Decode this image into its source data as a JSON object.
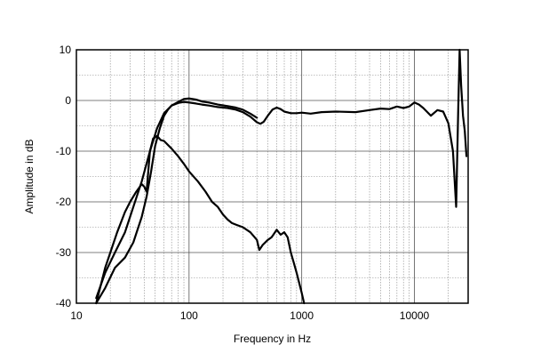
{
  "chart_data": {
    "type": "line",
    "title": "",
    "xlabel": "Frequency in Hz",
    "ylabel": "Amplitude in dB",
    "xscale": "log",
    "xlim": [
      10,
      30000
    ],
    "ylim": [
      -40,
      10
    ],
    "xticks": [
      10,
      100,
      1000,
      10000
    ],
    "xtick_labels": [
      "10",
      "100",
      "1000",
      "10000"
    ],
    "yticks": [
      10,
      0,
      -10,
      -20,
      -30,
      -40
    ],
    "ytick_labels": [
      "10",
      "0",
      "-10",
      "-20",
      "-30",
      "-40"
    ],
    "grid": true,
    "legend": "none",
    "line_color": "#000000",
    "series": [
      {
        "x": [
          15,
          18,
          22,
          27,
          32,
          38,
          45,
          52,
          60,
          70,
          80,
          90,
          100,
          115,
          130,
          150,
          180,
          220,
          260,
          300,
          350,
          400,
          430,
          460,
          500,
          550,
          600,
          650,
          700,
          800,
          900,
          1000,
          1200,
          1500,
          2000,
          3000,
          4000,
          5000,
          6000,
          7000,
          8000,
          9000,
          10000,
          11000,
          12000,
          14000,
          16000,
          18000,
          20000,
          22000,
          23500,
          24500,
          25200,
          26000,
          27000,
          28000,
          29000
        ],
        "y": [
          -39,
          -34,
          -30,
          -26,
          -21,
          -16,
          -10,
          -5.5,
          -2.5,
          -1,
          -0.5,
          -0.3,
          -0.4,
          -0.6,
          -0.8,
          -1,
          -1.3,
          -1.5,
          -1.8,
          -2.3,
          -3.2,
          -4.3,
          -4.6,
          -4.2,
          -3,
          -1.8,
          -1.4,
          -1.7,
          -2.2,
          -2.5,
          -2.5,
          -2.4,
          -2.6,
          -2.3,
          -2.2,
          -2.3,
          -1.9,
          -1.6,
          -1.7,
          -1.2,
          -1.5,
          -1.2,
          -0.4,
          -0.8,
          -1.5,
          -3,
          -1.9,
          -2.2,
          -4.5,
          -10,
          -21,
          -2,
          10,
          3,
          -3,
          -6,
          -11
        ]
      },
      {
        "x": [
          15,
          18,
          22,
          27,
          32,
          38,
          42,
          46,
          50,
          55,
          60,
          65,
          70,
          80,
          90,
          100,
          115,
          130,
          150,
          180,
          220,
          260,
          300,
          350,
          400
        ],
        "y": [
          -40,
          -37,
          -33,
          -31,
          -28,
          -23,
          -19,
          -14,
          -9,
          -5.5,
          -3,
          -1.8,
          -1,
          -0.3,
          0.3,
          0.4,
          0.2,
          -0.2,
          -0.4,
          -0.8,
          -1.1,
          -1.4,
          -1.8,
          -2.6,
          -3.4
        ]
      },
      {
        "x": [
          15,
          18,
          20,
          23,
          27,
          30,
          34,
          38,
          40,
          42,
          45,
          48,
          52,
          56,
          60,
          70,
          80,
          90,
          100,
          120,
          140,
          160,
          180,
          200,
          220,
          240,
          260,
          300,
          350,
          400,
          420,
          450,
          500,
          540,
          560,
          600,
          650,
          700,
          750,
          800,
          850,
          900,
          950,
          1000,
          1050
        ],
        "y": [
          -40,
          -33,
          -30,
          -26,
          -22,
          -20,
          -18,
          -16.5,
          -17,
          -18,
          -10,
          -7.5,
          -7,
          -7.8,
          -8,
          -9.5,
          -11,
          -12.5,
          -14,
          -16,
          -18,
          -20,
          -21,
          -22.5,
          -23.5,
          -24.2,
          -24.5,
          -25,
          -26,
          -27.5,
          -29.5,
          -28.5,
          -27.5,
          -27,
          -26.5,
          -25.5,
          -26.5,
          -26,
          -27,
          -30,
          -32,
          -34,
          -36,
          -38,
          -41
        ]
      }
    ]
  }
}
